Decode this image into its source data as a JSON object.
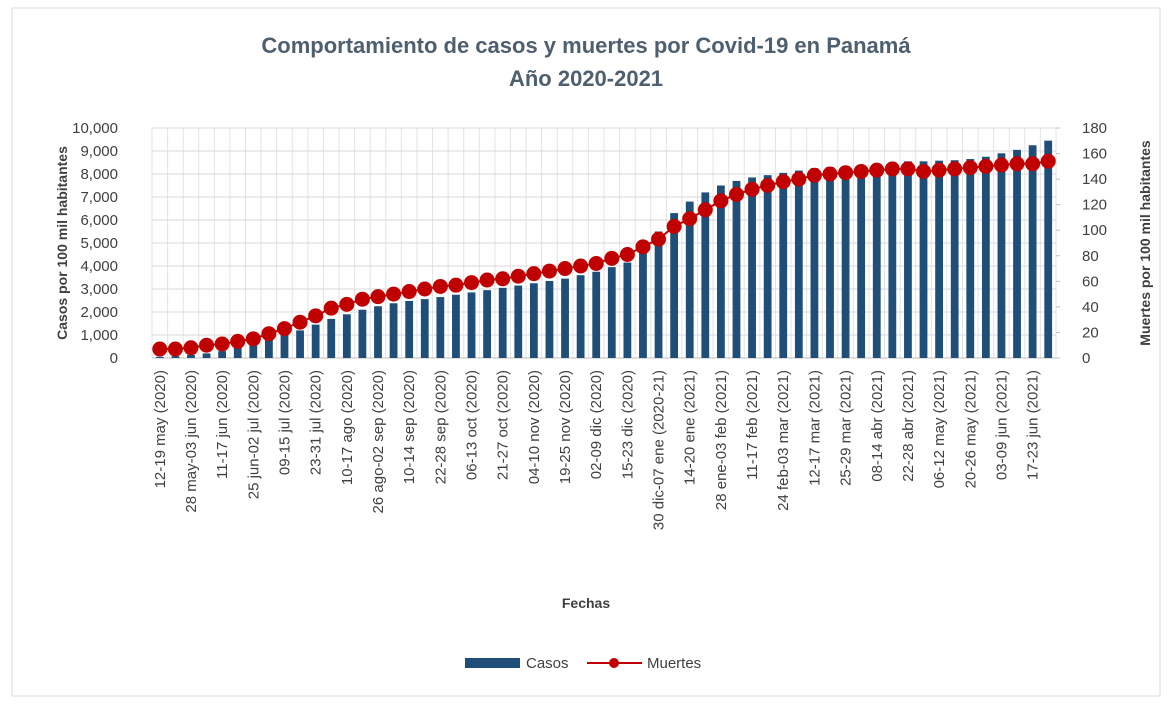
{
  "chart_data": {
    "type": "bar-line",
    "title": "Comportamiento de casos y muertes por Covid-19 en Panamá",
    "subtitle": "Año 2020-2021",
    "x_label": "Fechas",
    "y_label": "Casos por 100 mil habitantes",
    "y2_label": "Muertes por 100 mil habitantes",
    "categories": [
      "12-19 may (2020)",
      null,
      "28 may-03 jun (2020)",
      null,
      "11-17 jun (2020)",
      null,
      "25 jun-02 jul (2020)",
      null,
      "09-15 jul (2020)",
      null,
      "23-31 jul (2020)",
      null,
      "10-17 ago (2020)",
      null,
      "26 ago-02 sep (2020)",
      null,
      "10-14 sep (2020)",
      null,
      "22-28 sep (2020)",
      null,
      "06-13 oct (2020)",
      null,
      "21-27 oct (2020)",
      null,
      "04-10 nov (2020)",
      null,
      "19-25 nov (2020)",
      null,
      "02-09 dic (2020)",
      null,
      "15-23 dic (2020)",
      null,
      "30 dic-07 ene (2020-21)",
      null,
      "14-20 ene (2021)",
      null,
      "28 ene-03 feb (2021)",
      null,
      "11-17 feb (2021)",
      null,
      "24 feb-03 mar (2021)",
      null,
      "12-17 mar (2021)",
      null,
      "25-29 mar (2021)",
      null,
      "08-14 abr (2021)",
      null,
      "22-28 abr (2021)",
      null,
      "06-12 may (2021)",
      null,
      "20-26 may (2021)",
      null,
      "03-09 jun (2021)",
      null,
      "17-23 jun (2021)",
      null
    ],
    "series": [
      {
        "name": "Casos",
        "color": "#1f4e79",
        "values": [
          50,
          80,
          130,
          200,
          300,
          450,
          620,
          800,
          1000,
          1200,
          1450,
          1700,
          1900,
          2100,
          2250,
          2380,
          2480,
          2560,
          2650,
          2750,
          2850,
          2950,
          3050,
          3150,
          3250,
          3350,
          3450,
          3600,
          3750,
          3950,
          4150,
          4600,
          5500,
          6300,
          6800,
          7200,
          7500,
          7700,
          7850,
          7950,
          8050,
          8150,
          8250,
          8300,
          8350,
          8400,
          8450,
          8500,
          8550,
          8550,
          8580,
          8600,
          8650,
          8750,
          8900,
          9050,
          9250,
          9450
        ]
      },
      {
        "name": "Muertes",
        "color": "#c00000",
        "axis": "y2",
        "values": [
          7,
          7,
          8,
          10,
          11,
          13,
          15,
          19,
          23,
          28,
          33,
          39,
          42,
          46,
          48,
          50,
          52,
          54,
          56,
          57,
          59,
          61,
          62,
          64,
          66,
          68,
          70,
          72,
          74,
          78,
          81,
          87,
          93,
          103,
          109,
          116,
          123,
          128,
          132,
          135,
          138,
          140,
          143,
          144,
          145,
          146,
          147,
          148,
          148,
          146,
          147,
          148,
          149,
          150,
          151,
          152,
          152,
          154
        ]
      }
    ],
    "ylim": [
      0,
      10000
    ],
    "yticks": [
      0,
      {
        "value": 1000,
        "label": "1,000"
      },
      {
        "value": 2000,
        "label": "2,000"
      },
      {
        "value": 3000,
        "label": "3,000"
      },
      {
        "value": 4000,
        "label": "4,000"
      },
      {
        "value": 5000,
        "label": "5,000"
      },
      {
        "value": 6000,
        "label": "6,000"
      },
      {
        "value": 7000,
        "label": "7,000"
      },
      {
        "value": 8000,
        "label": "8,000"
      },
      {
        "value": 9000,
        "label": "9,000"
      },
      {
        "value": 10000,
        "label": "10,000"
      }
    ],
    "y2lim": [
      0,
      180
    ],
    "y2ticks": [
      0,
      20,
      40,
      60,
      80,
      100,
      120,
      140,
      160,
      180
    ],
    "grid": true,
    "legend": "bottom"
  }
}
